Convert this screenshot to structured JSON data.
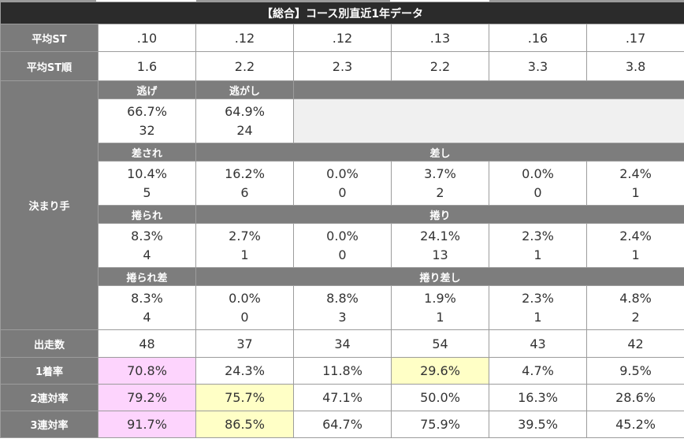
{
  "title": "【総合】コース別直近1年データ",
  "rows": {
    "avg_st": {
      "label": "平均ST",
      "values": [
        ".10",
        ".12",
        ".12",
        ".13",
        ".16",
        ".17"
      ]
    },
    "avg_st_rank": {
      "label": "平均ST順",
      "values": [
        "1.6",
        "2.2",
        "2.3",
        "2.2",
        "3.3",
        "3.8"
      ]
    },
    "kimarite": {
      "label": "決まり手",
      "nige": {
        "labels": [
          "逃げ",
          "逃がし"
        ],
        "pct": [
          "66.7%",
          "64.9%"
        ],
        "count": [
          "32",
          "24"
        ]
      },
      "sashi": {
        "labels": [
          "差され",
          "差し"
        ],
        "pct": [
          "10.4%",
          "16.2%",
          "0.0%",
          "3.7%",
          "0.0%",
          "2.4%"
        ],
        "count": [
          "5",
          "6",
          "0",
          "2",
          "0",
          "1"
        ]
      },
      "makuri": {
        "labels": [
          "捲られ",
          "捲り"
        ],
        "pct": [
          "8.3%",
          "2.7%",
          "0.0%",
          "24.1%",
          "2.3%",
          "2.4%"
        ],
        "count": [
          "4",
          "1",
          "0",
          "13",
          "1",
          "1"
        ]
      },
      "makurizashi": {
        "labels": [
          "捲られ差",
          "捲り差し"
        ],
        "pct": [
          "8.3%",
          "0.0%",
          "8.8%",
          "1.9%",
          "2.3%",
          "4.8%"
        ],
        "count": [
          "4",
          "0",
          "3",
          "1",
          "1",
          "2"
        ]
      }
    },
    "starts": {
      "label": "出走数",
      "values": [
        "48",
        "37",
        "34",
        "54",
        "43",
        "42"
      ]
    },
    "win_rate": {
      "label": "1着率",
      "values": [
        "70.8%",
        "24.3%",
        "11.8%",
        "29.6%",
        "4.7%",
        "9.5%"
      ]
    },
    "quinella_rate": {
      "label": "2連対率",
      "values": [
        "79.2%",
        "75.7%",
        "47.1%",
        "50.0%",
        "16.3%",
        "28.6%"
      ]
    },
    "trio_rate": {
      "label": "3連対率",
      "values": [
        "91.7%",
        "86.5%",
        "64.7%",
        "75.9%",
        "39.5%",
        "45.2%"
      ]
    }
  },
  "colors": {
    "header_dark": "#2b2b2b",
    "row_header": "#7b7b7b",
    "highlight_pink": "#fdd4fd",
    "highlight_yellow": "#ffffc6"
  }
}
